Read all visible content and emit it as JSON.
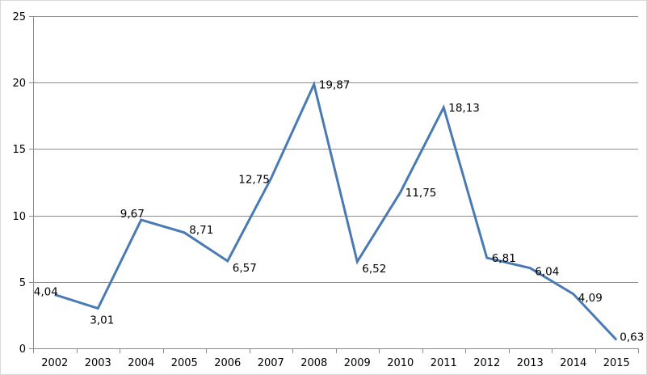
{
  "chart_data": {
    "type": "line",
    "title": "",
    "xlabel": "",
    "ylabel": "",
    "categories": [
      "2002",
      "2003",
      "2004",
      "2005",
      "2006",
      "2007",
      "2008",
      "2009",
      "2010",
      "2011",
      "2012",
      "2013",
      "2014",
      "2015"
    ],
    "series": [
      {
        "values": [
          4.04,
          3.01,
          9.67,
          8.71,
          6.57,
          12.75,
          19.87,
          6.52,
          11.75,
          18.13,
          6.81,
          6.04,
          4.09,
          0.63
        ],
        "labels": [
          "4,04",
          "3,01",
          "9,67",
          "8,71",
          "6,57",
          "12,75",
          "19,87",
          "6,52",
          "11,75",
          "18,13",
          "6,81",
          "6,04",
          "4,09",
          "0,63"
        ],
        "color": "#4a7ab3"
      }
    ],
    "ylim": [
      0,
      25
    ],
    "yticks": [
      "0",
      "5",
      "10",
      "15",
      "20",
      "25"
    ],
    "grid": true,
    "legend": "none"
  }
}
